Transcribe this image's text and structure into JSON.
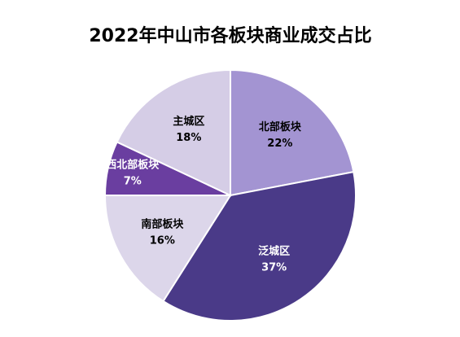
{
  "chart_data": {
    "type": "pie",
    "title": "2022年中山市各板块商业成交占比",
    "categories": [
      "北部板块",
      "泛城区",
      "南部板块",
      "西北部板块",
      "主城区"
    ],
    "values": [
      22,
      37,
      16,
      7,
      18
    ],
    "value_labels": [
      "22%",
      "37%",
      "16%",
      "7%",
      "18%"
    ],
    "colors": [
      "#a394d2",
      "#4a3a88",
      "#dcd6ea",
      "#6a3ea0",
      "#d5cde6"
    ]
  }
}
